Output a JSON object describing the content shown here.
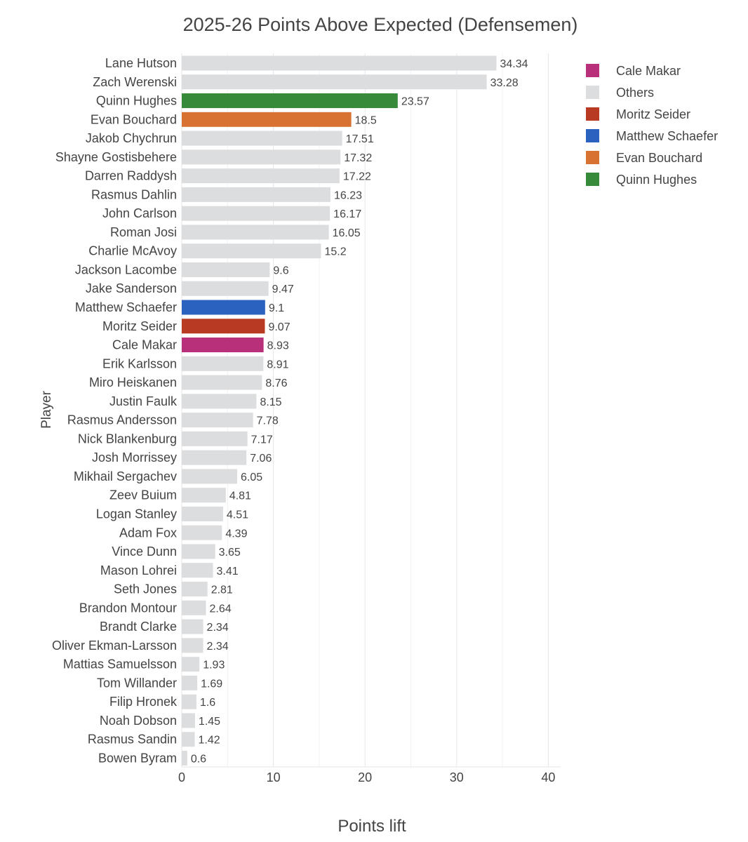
{
  "chart_data": {
    "type": "bar",
    "orientation": "horizontal",
    "title": "2025-26 Points Above Expected (Defensemen)",
    "xlabel": "Points lift",
    "ylabel": "Player",
    "xlim": [
      0,
      41.5
    ],
    "xticks": [
      "0",
      "10",
      "20",
      "30",
      "40"
    ],
    "grid": true,
    "legend_position": "top-right",
    "categories": [
      "Lane Hutson",
      "Zach Werenski",
      "Quinn Hughes",
      "Evan Bouchard",
      "Jakob Chychrun",
      "Shayne Gostisbehere",
      "Darren Raddysh",
      "Rasmus Dahlin",
      "John Carlson",
      "Roman Josi",
      "Charlie McAvoy",
      "Jackson Lacombe",
      "Jake Sanderson",
      "Matthew Schaefer",
      "Moritz Seider",
      "Cale Makar",
      "Erik Karlsson",
      "Miro Heiskanen",
      "Justin Faulk",
      "Rasmus Andersson",
      "Nick Blankenburg",
      "Josh Morrissey",
      "Mikhail Sergachev",
      "Zeev Buium",
      "Logan Stanley",
      "Adam Fox",
      "Vince Dunn",
      "Mason Lohrei",
      "Seth Jones",
      "Brandon Montour",
      "Brandt Clarke",
      "Oliver Ekman-Larsson",
      "Mattias Samuelsson",
      "Tom Willander",
      "Filip Hronek",
      "Noah Dobson",
      "Rasmus Sandin",
      "Bowen Byram"
    ],
    "values": [
      34.34,
      33.28,
      23.57,
      18.5,
      17.51,
      17.32,
      17.22,
      16.23,
      16.17,
      16.05,
      15.2,
      9.6,
      9.47,
      9.1,
      9.07,
      8.93,
      8.91,
      8.76,
      8.15,
      7.78,
      7.17,
      7.06,
      6.05,
      4.81,
      4.51,
      4.39,
      3.65,
      3.41,
      2.81,
      2.64,
      2.34,
      2.34,
      1.93,
      1.69,
      1.6,
      1.45,
      1.42,
      0.6
    ],
    "value_labels": [
      "34.34",
      "33.28",
      "23.57",
      "18.5",
      "17.51",
      "17.32",
      "17.22",
      "16.23",
      "16.17",
      "16.05",
      "15.2",
      "9.6",
      "9.47",
      "9.1",
      "9.07",
      "8.93",
      "8.91",
      "8.76",
      "8.15",
      "7.78",
      "7.17",
      "7.06",
      "6.05",
      "4.81",
      "4.51",
      "4.39",
      "3.65",
      "3.41",
      "2.81",
      "2.64",
      "2.34",
      "2.34",
      "1.93",
      "1.69",
      "1.6",
      "1.45",
      "1.42",
      "0.6"
    ],
    "groups": [
      "Others",
      "Others",
      "Quinn Hughes",
      "Evan Bouchard",
      "Others",
      "Others",
      "Others",
      "Others",
      "Others",
      "Others",
      "Others",
      "Others",
      "Others",
      "Matthew Schaefer",
      "Moritz Seider",
      "Cale Makar",
      "Others",
      "Others",
      "Others",
      "Others",
      "Others",
      "Others",
      "Others",
      "Others",
      "Others",
      "Others",
      "Others",
      "Others",
      "Others",
      "Others",
      "Others",
      "Others",
      "Others",
      "Others",
      "Others",
      "Others",
      "Others",
      "Others"
    ],
    "legend": [
      {
        "name": "Cale Makar",
        "color": "#b8307a"
      },
      {
        "name": "Others",
        "color": "#dcdddf"
      },
      {
        "name": "Moritz Seider",
        "color": "#b93a22"
      },
      {
        "name": "Matthew Schaefer",
        "color": "#2b62bf"
      },
      {
        "name": "Evan Bouchard",
        "color": "#d77232"
      },
      {
        "name": "Quinn Hughes",
        "color": "#388a3b"
      }
    ]
  }
}
